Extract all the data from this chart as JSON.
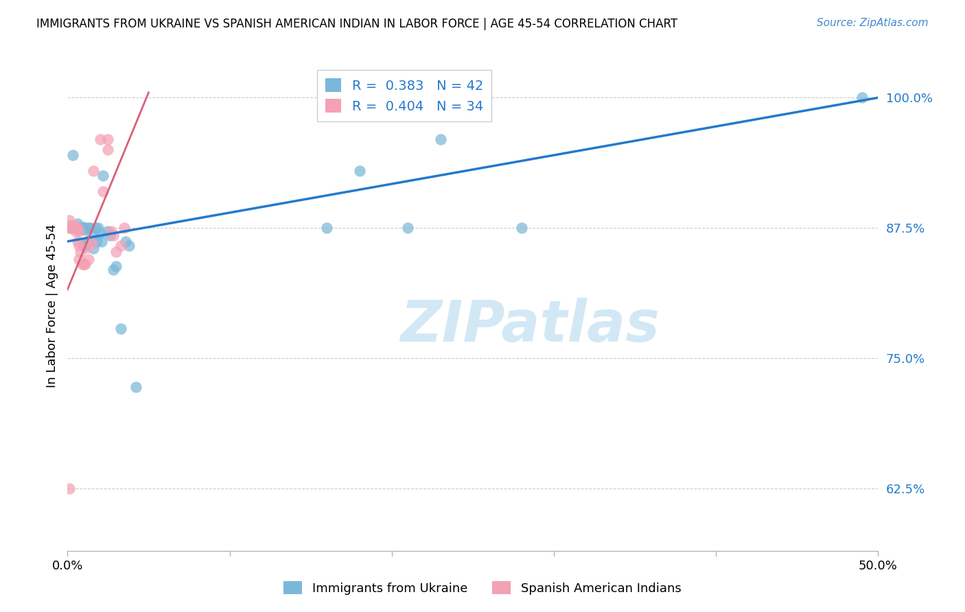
{
  "title": "IMMIGRANTS FROM UKRAINE VS SPANISH AMERICAN INDIAN IN LABOR FORCE | AGE 45-54 CORRELATION CHART",
  "source": "Source: ZipAtlas.com",
  "ylabel": "In Labor Force | Age 45-54",
  "xlim": [
    0.0,
    0.5
  ],
  "ylim": [
    0.565,
    1.035
  ],
  "xticks": [
    0.0,
    0.1,
    0.2,
    0.3,
    0.4,
    0.5
  ],
  "xticklabels": [
    "0.0%",
    "",
    "",
    "",
    "",
    "50.0%"
  ],
  "ytick_positions": [
    0.625,
    0.75,
    0.875,
    1.0
  ],
  "ytick_labels": [
    "62.5%",
    "75.0%",
    "87.5%",
    "100.0%"
  ],
  "blue_R": 0.383,
  "blue_N": 42,
  "pink_R": 0.404,
  "pink_N": 34,
  "blue_color": "#7ab8d9",
  "pink_color": "#f4a0b5",
  "blue_line_color": "#2479cc",
  "pink_line_color": "#d9607a",
  "blue_label": "Immigrants from Ukraine",
  "pink_label": "Spanish American Indians",
  "watermark": "ZIPatlas",
  "blue_x": [
    0.002,
    0.003,
    0.004,
    0.005,
    0.006,
    0.006,
    0.007,
    0.007,
    0.008,
    0.008,
    0.009,
    0.009,
    0.01,
    0.01,
    0.01,
    0.011,
    0.011,
    0.012,
    0.013,
    0.014,
    0.015,
    0.016,
    0.017,
    0.018,
    0.019,
    0.02,
    0.021,
    0.022,
    0.025,
    0.026,
    0.028,
    0.03,
    0.033,
    0.036,
    0.038,
    0.042,
    0.16,
    0.18,
    0.21,
    0.23,
    0.28,
    0.49
  ],
  "blue_y": [
    0.875,
    0.945,
    0.875,
    0.875,
    0.879,
    0.875,
    0.875,
    0.875,
    0.875,
    0.875,
    0.875,
    0.874,
    0.876,
    0.875,
    0.858,
    0.873,
    0.858,
    0.862,
    0.875,
    0.875,
    0.868,
    0.855,
    0.875,
    0.862,
    0.875,
    0.87,
    0.862,
    0.925,
    0.872,
    0.868,
    0.835,
    0.838,
    0.778,
    0.862,
    0.858,
    0.722,
    0.875,
    0.93,
    0.875,
    0.96,
    0.875,
    1.0
  ],
  "pink_x": [
    0.001,
    0.001,
    0.001,
    0.002,
    0.002,
    0.003,
    0.003,
    0.004,
    0.004,
    0.005,
    0.005,
    0.006,
    0.006,
    0.007,
    0.007,
    0.007,
    0.008,
    0.009,
    0.01,
    0.011,
    0.012,
    0.013,
    0.015,
    0.016,
    0.02,
    0.022,
    0.025,
    0.025,
    0.027,
    0.028,
    0.03,
    0.033,
    0.035,
    0.001
  ],
  "pink_y": [
    0.875,
    0.876,
    0.882,
    0.876,
    0.878,
    0.877,
    0.875,
    0.875,
    0.877,
    0.876,
    0.872,
    0.875,
    0.862,
    0.872,
    0.858,
    0.845,
    0.852,
    0.84,
    0.84,
    0.84,
    0.856,
    0.845,
    0.86,
    0.93,
    0.96,
    0.91,
    0.96,
    0.95,
    0.872,
    0.868,
    0.852,
    0.858,
    0.875,
    0.625
  ],
  "blue_line_x0": 0.0,
  "blue_line_x1": 0.5,
  "blue_line_y0": 0.862,
  "blue_line_y1": 1.0,
  "pink_line_x0": 0.0,
  "pink_line_x1": 0.05,
  "pink_line_y0": 0.816,
  "pink_line_y1": 1.005
}
